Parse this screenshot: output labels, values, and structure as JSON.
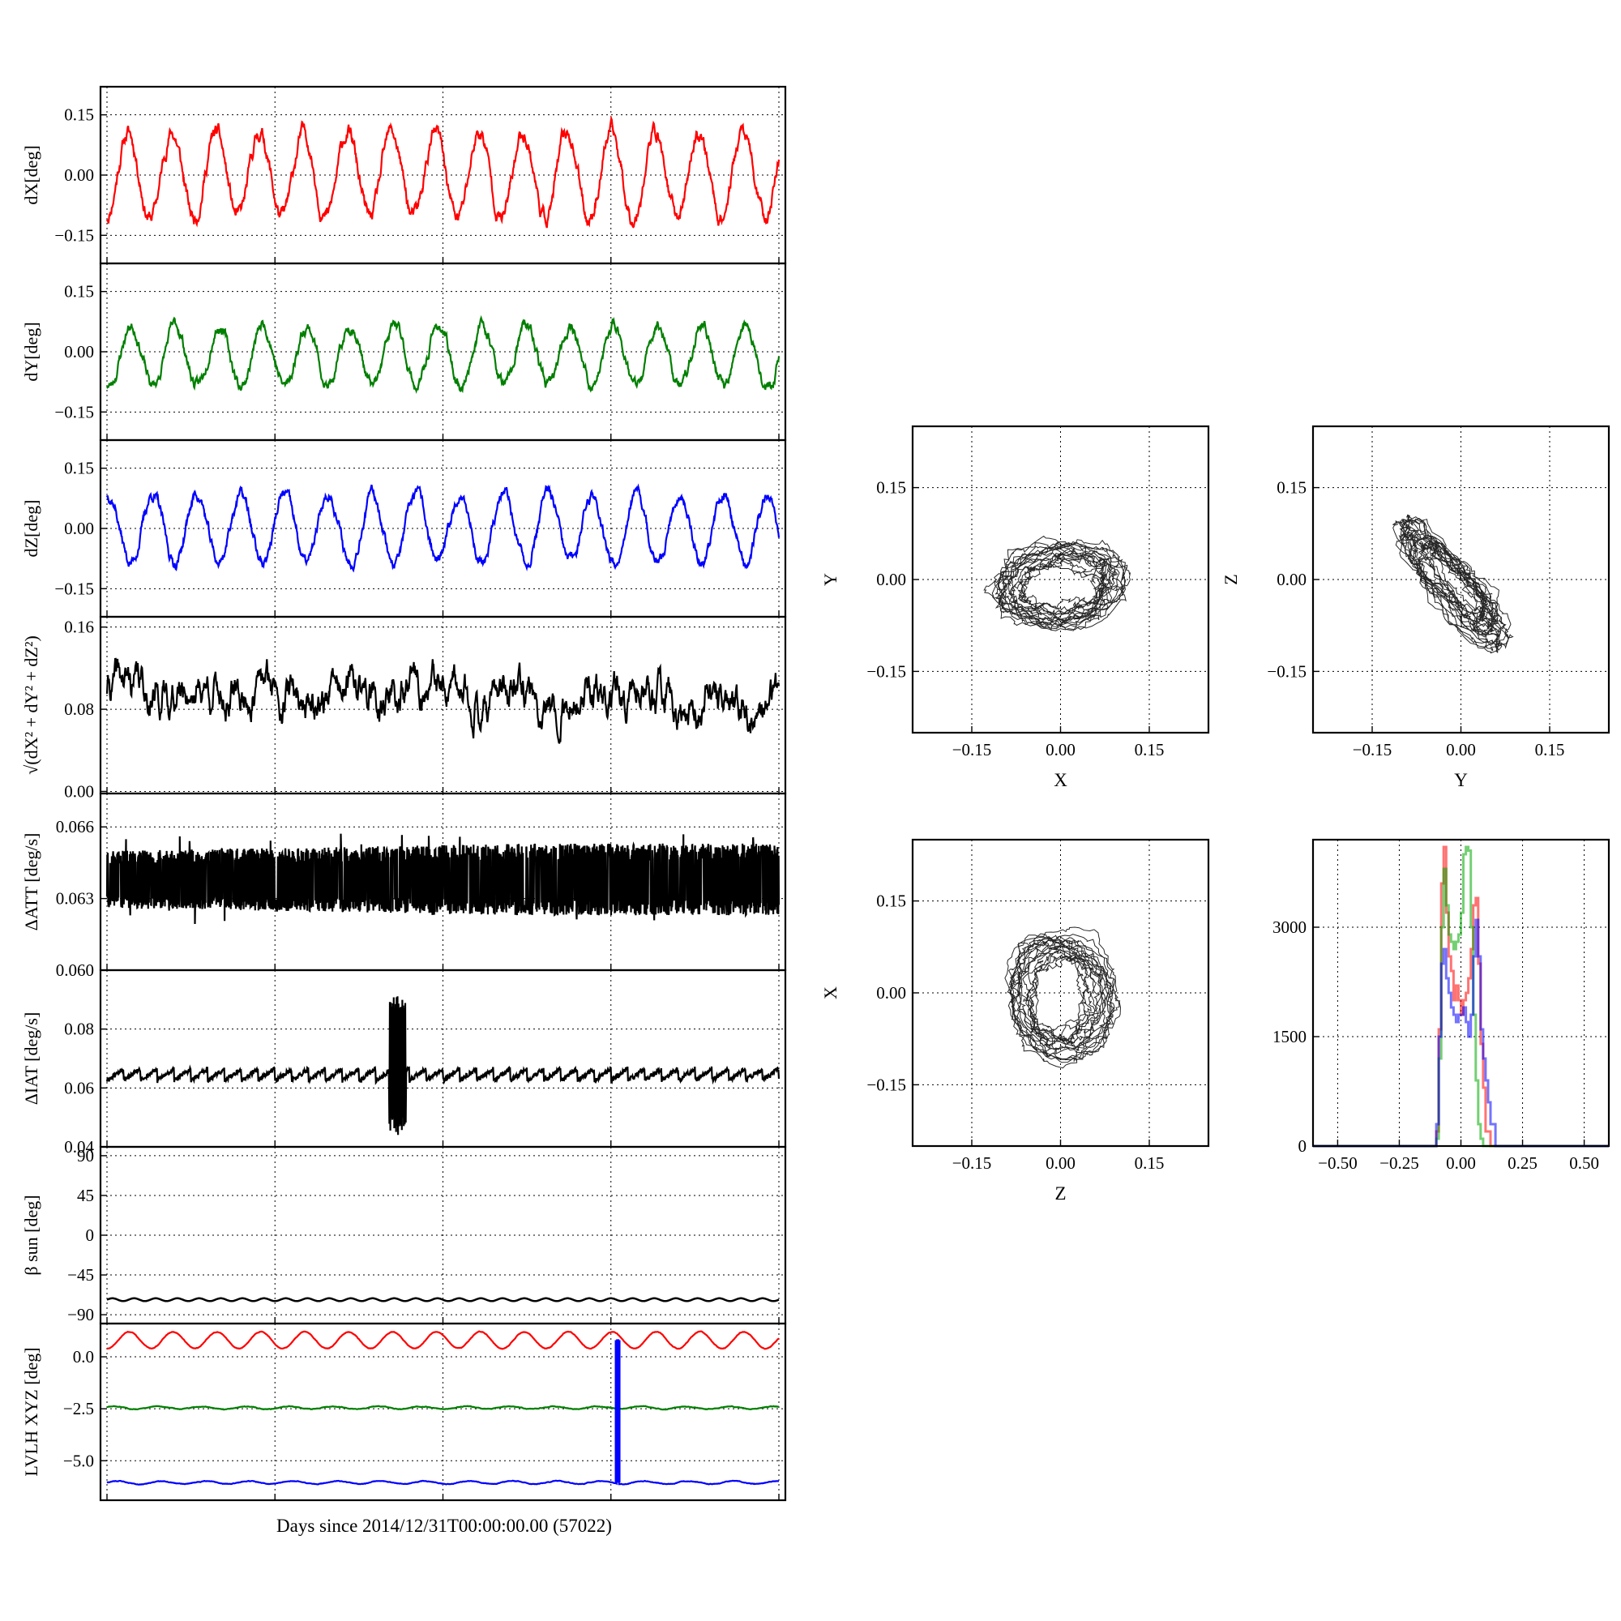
{
  "figure": {
    "xlabel": "Days since 2014/12/31T00:00:00.00 (57022)"
  },
  "chart_data": [
    {
      "id": "dX",
      "type": "line",
      "ylabel": "dX[deg]",
      "ylim": [
        -0.22,
        0.22
      ],
      "yticks": [
        -0.15,
        0.0,
        0.15
      ],
      "ytick_labels": [
        "−0.15",
        "0.00",
        "0.15"
      ],
      "xlim": [
        0,
        1
      ],
      "grid": true,
      "series": [
        {
          "color": "#ff0000",
          "model": {
            "kind": "sine",
            "offset": 0.0,
            "amp": 0.105,
            "cycles": 15.3,
            "phase": -1.45,
            "noise": 0.012,
            "seed": 11
          }
        }
      ]
    },
    {
      "id": "dY",
      "type": "line",
      "ylabel": "dY[deg]",
      "ylim": [
        -0.22,
        0.22
      ],
      "yticks": [
        -0.15,
        0.0,
        0.15
      ],
      "ytick_labels": [
        "−0.15",
        "0.00",
        "0.15"
      ],
      "xlim": [
        0,
        1
      ],
      "grid": true,
      "series": [
        {
          "color": "#007f00",
          "model": {
            "kind": "sine",
            "offset": -0.01,
            "amp": 0.075,
            "cycles": 15.3,
            "phase": -1.9,
            "noise": 0.009,
            "seed": 23
          }
        }
      ]
    },
    {
      "id": "dZ",
      "type": "line",
      "ylabel": "dZ[deg]",
      "ylim": [
        -0.22,
        0.22
      ],
      "yticks": [
        -0.15,
        0.0,
        0.15
      ],
      "ytick_labels": [
        "−0.15",
        "0.00",
        "0.15"
      ],
      "xlim": [
        0,
        1
      ],
      "grid": true,
      "series": [
        {
          "color": "#0000ff",
          "model": {
            "kind": "sine",
            "offset": 0.0,
            "amp": 0.085,
            "cycles": 15.3,
            "phase": 1.3,
            "noise": 0.009,
            "seed": 37
          }
        }
      ]
    },
    {
      "id": "norm",
      "type": "line",
      "ylabel": "√(dX²+dY²+dZ²)",
      "ylim": [
        -0.002,
        0.17
      ],
      "yticks": [
        0.0,
        0.08,
        0.16
      ],
      "ytick_labels": [
        "0.00",
        "0.08",
        "0.16"
      ],
      "xlim": [
        0,
        1
      ],
      "grid": true,
      "series": [
        {
          "color": "#000000",
          "model": {
            "kind": "noise",
            "offset": 0.1,
            "trend": -0.015,
            "amp": 0.013,
            "noise": 0.01,
            "seed": 41
          }
        }
      ]
    },
    {
      "id": "datt",
      "type": "line",
      "ylabel": "ΔATT [deg/s]",
      "ylim": [
        0.06,
        0.0674
      ],
      "yticks": [
        0.06,
        0.063,
        0.066
      ],
      "ytick_labels": [
        "0.060",
        "0.063",
        "0.066"
      ],
      "xlim": [
        0,
        1
      ],
      "grid": true,
      "series": [
        {
          "color": "#000000",
          "model": {
            "kind": "band",
            "center": 0.0638,
            "half": 0.0012,
            "growth": 0.0003,
            "spike": 0.0016,
            "seed": 53
          }
        }
      ]
    },
    {
      "id": "diat",
      "type": "line",
      "ylabel": "ΔIAT [deg/s]",
      "ylim": [
        0.04,
        0.1
      ],
      "yticks": [
        0.04,
        0.06,
        0.08
      ],
      "ytick_labels": [
        "0.04",
        "0.06",
        "0.08"
      ],
      "xlim": [
        0,
        1
      ],
      "grid": true,
      "series": [
        {
          "color": "#000000",
          "model": {
            "kind": "sawtooth",
            "base": 0.0625,
            "amp": 0.004,
            "teeth": 40,
            "burst_start": 0.42,
            "burst_end": 0.445,
            "burst_low": 0.044,
            "burst_high": 0.092,
            "seed": 61
          }
        }
      ]
    },
    {
      "id": "beta",
      "type": "line",
      "ylabel": "β_sun [deg]",
      "ylim": [
        -100,
        100
      ],
      "yticks": [
        -90,
        -45,
        0,
        45,
        90
      ],
      "ytick_labels": [
        "−90",
        "−45",
        "0",
        "45",
        "90"
      ],
      "xlim": [
        0,
        1
      ],
      "grid": true,
      "series": [
        {
          "color": "#000000",
          "model": {
            "kind": "sine",
            "offset": -73,
            "amp": 1.6,
            "cycles": 31,
            "phase": 0,
            "noise": 0.0,
            "seed": 71
          }
        }
      ]
    },
    {
      "id": "lvlh",
      "type": "line",
      "ylabel": "LVLH XYZ [deg]",
      "ylim": [
        -6.9,
        1.6
      ],
      "yticks": [
        -5.0,
        -2.5,
        0.0
      ],
      "ytick_labels": [
        "−5.0",
        "−2.5",
        "0.0"
      ],
      "xlim": [
        0,
        1
      ],
      "grid": true,
      "series": [
        {
          "color": "#ff0000",
          "model": {
            "kind": "sine",
            "offset": 0.8,
            "amp": 0.4,
            "cycles": 15.3,
            "phase": -1.6,
            "noise": 0.01,
            "seed": 81
          }
        },
        {
          "color": "#007f00",
          "model": {
            "kind": "sine",
            "offset": -2.45,
            "amp": 0.06,
            "cycles": 15.3,
            "phase": 0.5,
            "noise": 0.01,
            "seed": 83
          }
        },
        {
          "color": "#0000ff",
          "model": {
            "kind": "spike",
            "offset": -6.05,
            "amp": 0.07,
            "cycles": 15.3,
            "spike_at": 0.76,
            "spike_top": 0.8,
            "noise": 0.01,
            "seed": 85
          }
        }
      ]
    },
    {
      "id": "xy",
      "type": "scatter",
      "xlabel": "X",
      "ylabel": "Y",
      "xlim": [
        -0.25,
        0.25
      ],
      "ylim": [
        -0.25,
        0.25
      ],
      "xticks": [
        -0.15,
        0.0,
        0.15
      ],
      "yticks": [
        -0.15,
        0.0,
        0.15
      ],
      "xtick_labels": [
        "−0.15",
        "0.00",
        "0.15"
      ],
      "ytick_labels": [
        "−0.15",
        "0.00",
        "0.15"
      ],
      "grid": true,
      "loop": {
        "cx": 0.0,
        "cy": -0.01,
        "rx": 0.105,
        "ry": 0.062,
        "tilt": 0.12,
        "seed": 91
      }
    },
    {
      "id": "yz",
      "type": "scatter",
      "xlabel": "Y",
      "ylabel": "Z",
      "xlim": [
        -0.25,
        0.25
      ],
      "ylim": [
        -0.25,
        0.25
      ],
      "xticks": [
        -0.15,
        0.0,
        0.15
      ],
      "yticks": [
        -0.15,
        0.0,
        0.15
      ],
      "xtick_labels": [
        "−0.15",
        "0.00",
        "0.15"
      ],
      "ytick_labels": [
        "−0.15",
        "0.00",
        "0.15"
      ],
      "grid": true,
      "loop": {
        "cx": -0.015,
        "cy": -0.005,
        "rx": 0.125,
        "ry": 0.03,
        "tilt": -0.85,
        "seed": 93
      }
    },
    {
      "id": "zx",
      "type": "scatter",
      "xlabel": "Z",
      "ylabel": "X",
      "xlim": [
        -0.25,
        0.25
      ],
      "ylim": [
        -0.25,
        0.25
      ],
      "xticks": [
        -0.15,
        0.0,
        0.15
      ],
      "yticks": [
        -0.15,
        0.0,
        0.15
      ],
      "xtick_labels": [
        "−0.15",
        "0.00",
        "0.15"
      ],
      "ytick_labels": [
        "−0.15",
        "0.00",
        "0.15"
      ],
      "grid": true,
      "loop": {
        "cx": 0.0,
        "cy": -0.005,
        "rx": 0.085,
        "ry": 0.1,
        "tilt": 0.25,
        "seed": 95
      }
    },
    {
      "id": "hist",
      "type": "line",
      "xlim": [
        -0.6,
        0.6
      ],
      "ylim": [
        0,
        4200
      ],
      "xticks": [
        -0.5,
        -0.25,
        0.0,
        0.25,
        0.5
      ],
      "yticks": [
        0,
        1500,
        3000
      ],
      "xtick_labels": [
        "−0.50",
        "−0.25",
        "0.00",
        "0.25",
        "0.50"
      ],
      "ytick_labels": [
        "0",
        "1500",
        "3000"
      ],
      "grid": true,
      "series": [
        {
          "color": "#ff0000",
          "x": [
            -0.6,
            -0.12,
            -0.1,
            -0.09,
            -0.08,
            -0.07,
            -0.06,
            -0.05,
            -0.04,
            -0.03,
            -0.02,
            -0.01,
            0.0,
            0.01,
            0.02,
            0.03,
            0.04,
            0.05,
            0.06,
            0.07,
            0.08,
            0.09,
            0.1,
            0.12,
            0.6
          ],
          "y": [
            0,
            0,
            200,
            1600,
            3600,
            4100,
            3200,
            2600,
            2400,
            2000,
            2200,
            2000,
            1800,
            2000,
            2100,
            2300,
            2700,
            3300,
            3400,
            2500,
            1400,
            800,
            200,
            0,
            0
          ]
        },
        {
          "color": "#00aa00",
          "x": [
            -0.6,
            -0.12,
            -0.1,
            -0.09,
            -0.08,
            -0.07,
            -0.06,
            -0.05,
            -0.04,
            -0.03,
            -0.02,
            -0.01,
            0.0,
            0.01,
            0.02,
            0.03,
            0.04,
            0.05,
            0.06,
            0.07,
            0.08,
            0.09,
            0.1,
            0.12,
            0.6
          ],
          "y": [
            0,
            0,
            100,
            1200,
            3000,
            3800,
            3300,
            2900,
            2800,
            2700,
            2800,
            2900,
            3200,
            4000,
            4100,
            4050,
            3000,
            1800,
            900,
            300,
            100,
            0,
            0,
            0,
            0
          ]
        },
        {
          "color": "#0000ff",
          "x": [
            -0.6,
            -0.12,
            -0.1,
            -0.09,
            -0.08,
            -0.07,
            -0.06,
            -0.05,
            -0.04,
            -0.03,
            -0.02,
            -0.01,
            0.0,
            0.01,
            0.02,
            0.03,
            0.04,
            0.05,
            0.06,
            0.07,
            0.08,
            0.09,
            0.1,
            0.11,
            0.12,
            0.14,
            0.6
          ],
          "y": [
            0,
            0,
            300,
            1500,
            2500,
            2700,
            2300,
            2100,
            1900,
            1800,
            1700,
            1800,
            1800,
            1900,
            1700,
            1500,
            1800,
            2600,
            3100,
            2600,
            1600,
            1200,
            900,
            600,
            300,
            0,
            0
          ]
        }
      ]
    }
  ]
}
